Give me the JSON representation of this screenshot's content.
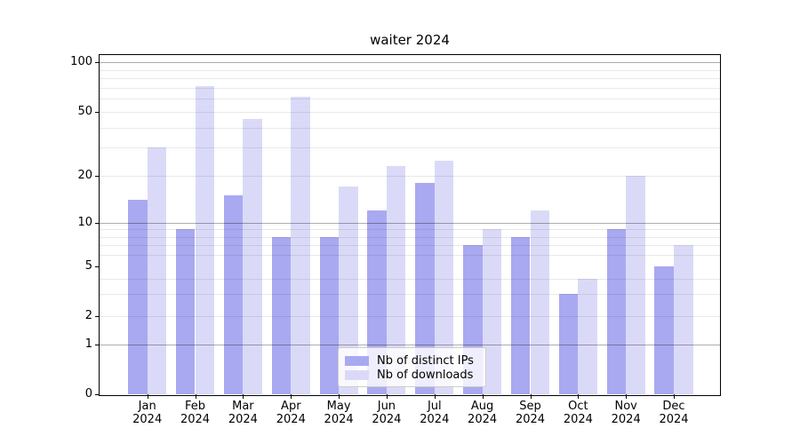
{
  "chart_data": {
    "type": "bar",
    "title": "waiter 2024",
    "categories": [
      "Jan",
      "Feb",
      "Mar",
      "Apr",
      "May",
      "Jun",
      "Jul",
      "Aug",
      "Sep",
      "Oct",
      "Nov",
      "Dec"
    ],
    "category_year": "2024",
    "series": [
      {
        "name": "Nb of distinct IPs",
        "color": "#a9a9f1",
        "values": [
          14,
          9,
          15,
          8,
          8,
          12,
          18,
          7,
          8,
          3,
          9,
          5
        ]
      },
      {
        "name": "Nb of downloads",
        "color": "#dadaf8",
        "values": [
          30,
          72,
          45,
          62,
          17,
          23,
          25,
          9,
          12,
          4,
          20,
          7
        ]
      }
    ],
    "ylabel": "",
    "xlabel": "",
    "y_scale": "symlog-like",
    "y_tick_values": [
      0,
      1,
      2,
      5,
      10,
      20,
      50,
      100
    ],
    "y_tick_labels": [
      "0",
      "1",
      "2",
      "5",
      "10",
      "20",
      "50",
      "100"
    ],
    "major_grid_values": [
      1,
      10,
      100
    ],
    "minor_grid_values": [
      2,
      3,
      4,
      6,
      7,
      8,
      9,
      20,
      30,
      40,
      50,
      60,
      70,
      80,
      90
    ],
    "ylim": [
      0,
      110
    ],
    "grid": true,
    "legend_position": "lower center"
  },
  "legend": {
    "items": [
      {
        "label": "Nb of distinct IPs",
        "color": "#a9a9f1"
      },
      {
        "label": "Nb of downloads",
        "color": "#dadaf8"
      }
    ]
  },
  "colors": {
    "background": "#ffffff",
    "frame": "#000000",
    "bar_dark": "#a9a9f1",
    "bar_light": "#dadaf8",
    "major_grid": "#b3b3b3",
    "minor_grid": "#e9e9e9",
    "text": "#000000"
  }
}
